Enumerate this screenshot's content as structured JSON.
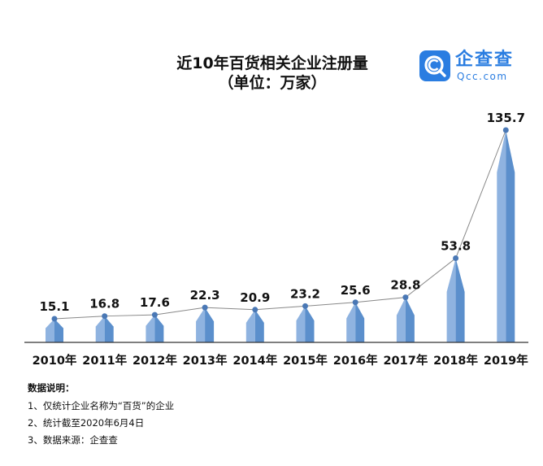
{
  "header": {
    "title_line1": "近10年百货相关企业注册量",
    "title_line2": "（单位：万家）"
  },
  "logo": {
    "name": "企查查",
    "url": "Qcc.com",
    "icon": "qcc-magnifier-icon",
    "color": "#2a7de1"
  },
  "chart_data": {
    "type": "bar",
    "categories": [
      "2010年",
      "2011年",
      "2012年",
      "2013年",
      "2014年",
      "2015年",
      "2016年",
      "2017年",
      "2018年",
      "2019年"
    ],
    "series": [
      {
        "values": [
          15.1,
          16.8,
          17.6,
          22.3,
          20.9,
          23.2,
          25.6,
          28.8,
          53.8,
          135.7
        ]
      }
    ],
    "overlay": "line",
    "data_labels": true,
    "title": "近10年百货相关企业注册量",
    "subtitle": "（单位：万家）",
    "ylim": [
      0,
      135.7
    ],
    "grid": false,
    "bar_color": "#5b8fcc",
    "line_color": "#888888",
    "marker_color": "#4a78b5"
  },
  "notes": {
    "title": "数据说明：",
    "items": [
      "1、仅统计企业名称为“百货”的企业",
      "2、统计截至2020年6月4日",
      "3、数据来源：企查查"
    ]
  }
}
